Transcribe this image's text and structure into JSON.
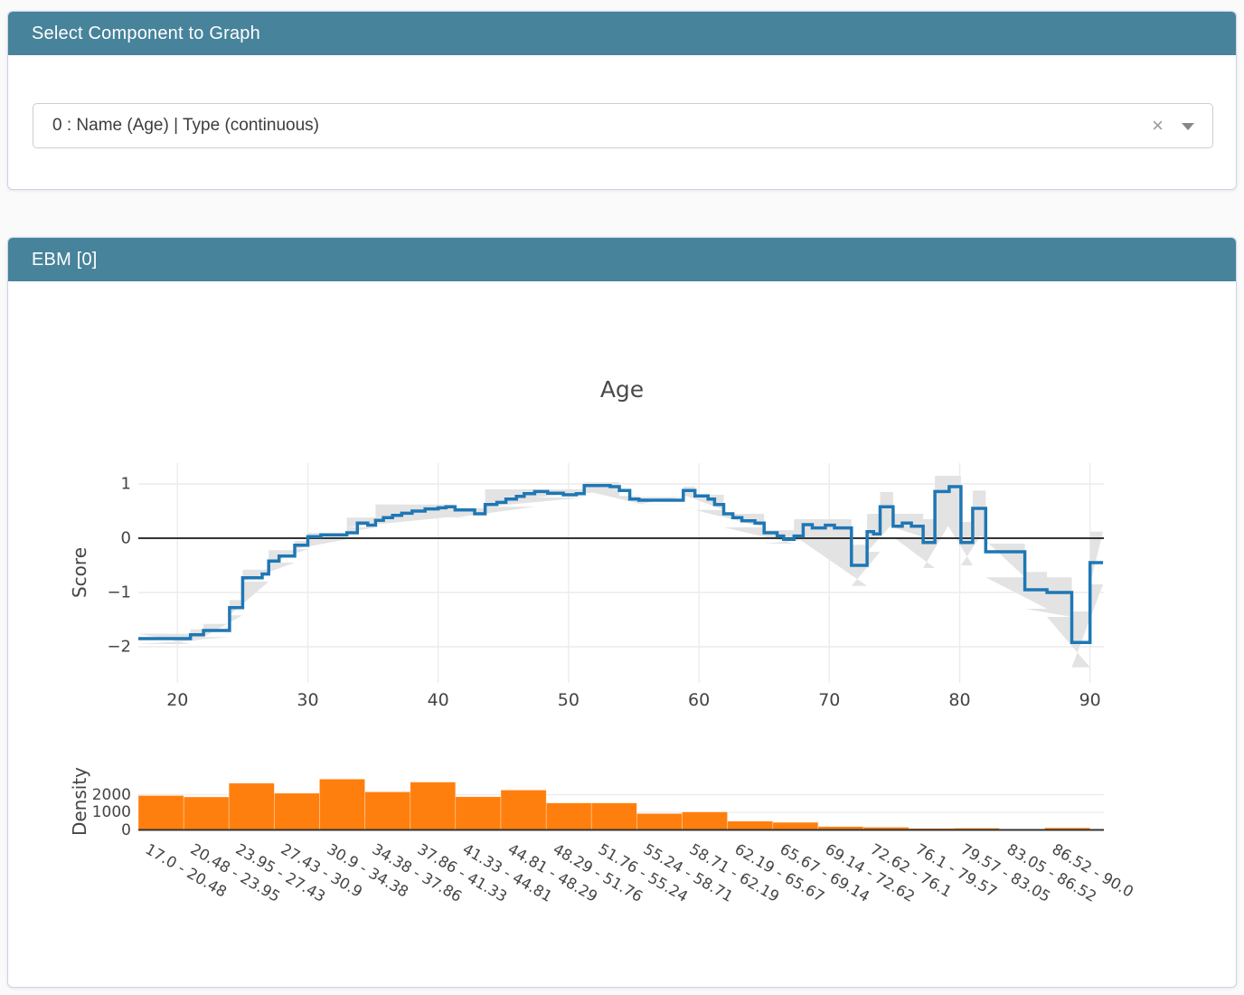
{
  "select_panel": {
    "title": "Select Component to Graph",
    "dropdown": {
      "value": "0 : Name (Age) | Type (continuous)",
      "clear_icon": "×"
    }
  },
  "ebm_panel": {
    "title": "EBM [0]"
  },
  "colors": {
    "header_teal": "#47839B",
    "line_blue": "#1f77b4",
    "band_gray": "#e3e3e3",
    "bar_orange": "#ff7f0e",
    "zero_line": "#333333",
    "grid": "#ececec",
    "tick_text": "#444444"
  },
  "chart_data": [
    {
      "type": "line",
      "title": "Age",
      "ylabel": "Score",
      "xlabel": "",
      "line_shape": "step-after",
      "grid": true,
      "zero_line": true,
      "x_range": [
        17,
        91
      ],
      "y_range": [
        -2.7,
        1.37
      ],
      "xticks": [
        20,
        30,
        40,
        50,
        60,
        70,
        80,
        90
      ],
      "yticks": [
        1,
        0,
        -1,
        -2
      ],
      "steps": [
        [
          17,
          -1.85
        ],
        [
          21,
          -1.78
        ],
        [
          22,
          -1.7
        ],
        [
          24,
          -1.28
        ],
        [
          25,
          -0.73
        ],
        [
          26.5,
          -0.66
        ],
        [
          27,
          -0.42
        ],
        [
          27.8,
          -0.33
        ],
        [
          29,
          -0.13
        ],
        [
          30,
          0.03
        ],
        [
          31,
          0.06
        ],
        [
          33,
          0.1
        ],
        [
          33.8,
          0.28
        ],
        [
          34.6,
          0.24
        ],
        [
          35.2,
          0.33
        ],
        [
          35.8,
          0.38
        ],
        [
          36.5,
          0.42
        ],
        [
          37.2,
          0.46
        ],
        [
          38,
          0.5
        ],
        [
          39,
          0.54
        ],
        [
          40,
          0.56
        ],
        [
          40.6,
          0.58
        ],
        [
          41.3,
          0.52
        ],
        [
          42.8,
          0.45
        ],
        [
          43.6,
          0.62
        ],
        [
          44.5,
          0.66
        ],
        [
          45.2,
          0.72
        ],
        [
          46,
          0.77
        ],
        [
          46.6,
          0.82
        ],
        [
          47.4,
          0.86
        ],
        [
          48.4,
          0.83
        ],
        [
          49.6,
          0.8
        ],
        [
          50.6,
          0.82
        ],
        [
          51.2,
          0.97
        ],
        [
          53.2,
          0.95
        ],
        [
          53.9,
          0.88
        ],
        [
          54.7,
          0.72
        ],
        [
          55.4,
          0.7
        ],
        [
          58.8,
          0.88
        ],
        [
          59.7,
          0.78
        ],
        [
          60.7,
          0.72
        ],
        [
          61.2,
          0.62
        ],
        [
          61.9,
          0.45
        ],
        [
          62.6,
          0.38
        ],
        [
          63.3,
          0.32
        ],
        [
          64.3,
          0.28
        ],
        [
          65,
          0.1
        ],
        [
          66,
          0.04
        ],
        [
          66.5,
          -0.02
        ],
        [
          67.3,
          0.04
        ],
        [
          68,
          0.25
        ],
        [
          68.7,
          0.19
        ],
        [
          69.7,
          0.24
        ],
        [
          70.4,
          0.19
        ],
        [
          71.7,
          -0.5
        ],
        [
          72.9,
          0.12
        ],
        [
          73.4,
          0.08
        ],
        [
          73.9,
          0.58
        ],
        [
          74.9,
          0.22
        ],
        [
          75.6,
          0.28
        ],
        [
          76.3,
          0.22
        ],
        [
          77.2,
          -0.08
        ],
        [
          78.1,
          0.86
        ],
        [
          79.2,
          0.95
        ],
        [
          80.1,
          -0.08
        ],
        [
          81,
          0.55
        ],
        [
          82,
          -0.25
        ],
        [
          85,
          -0.95
        ],
        [
          86.7,
          -1.0
        ],
        [
          88.6,
          -1.92
        ],
        [
          90,
          -0.45
        ]
      ],
      "x_end": 91,
      "ci": [
        [
          17,
          21,
          -1.95,
          -1.76
        ],
        [
          21,
          22,
          -1.88,
          -1.68
        ],
        [
          22,
          24,
          -1.82,
          -1.58
        ],
        [
          24,
          25,
          -1.42,
          -1.14
        ],
        [
          25,
          27,
          -0.8,
          -0.58
        ],
        [
          27,
          29,
          -0.45,
          -0.22
        ],
        [
          29,
          30,
          -0.2,
          -0.05
        ],
        [
          30,
          33,
          -0.02,
          0.1
        ],
        [
          33,
          35.2,
          0.2,
          0.38
        ],
        [
          35.2,
          41.3,
          0.4,
          0.62
        ],
        [
          41.3,
          43.6,
          0.38,
          0.55
        ],
        [
          43.6,
          47.4,
          0.58,
          0.9
        ],
        [
          47.4,
          51.2,
          0.75,
          0.9
        ],
        [
          51.2,
          53.9,
          0.88,
          1.03
        ],
        [
          53.9,
          55.4,
          0.64,
          0.78
        ],
        [
          55.4,
          58.8,
          0.63,
          0.76
        ],
        [
          58.8,
          59.7,
          0.8,
          0.95
        ],
        [
          59.7,
          61.9,
          0.52,
          0.8
        ],
        [
          61.9,
          65,
          0.2,
          0.45
        ],
        [
          65,
          67.3,
          -0.1,
          0.15
        ],
        [
          67.3,
          71.7,
          0.05,
          0.35
        ],
        [
          71.7,
          72.9,
          -0.88,
          -0.12
        ],
        [
          72.9,
          73.9,
          -0.25,
          0.45
        ],
        [
          73.9,
          74.9,
          0.28,
          0.85
        ],
        [
          74.9,
          77.2,
          0.02,
          0.45
        ],
        [
          77.2,
          78.1,
          -0.55,
          0.35
        ],
        [
          78.1,
          80.1,
          0.62,
          1.15
        ],
        [
          80.1,
          81,
          -0.5,
          0.3
        ],
        [
          81,
          82,
          0.18,
          0.88
        ],
        [
          82,
          85,
          -0.72,
          -0.1
        ],
        [
          85,
          86.7,
          -1.3,
          -0.62
        ],
        [
          86.7,
          88.6,
          -1.45,
          -0.72
        ],
        [
          88.6,
          90,
          -2.38,
          -1.35
        ],
        [
          90,
          91,
          -0.85,
          0.12
        ]
      ]
    },
    {
      "type": "bar",
      "ylabel": "Density",
      "yticks": [
        0,
        1000,
        2000
      ],
      "y_range": [
        0,
        3450
      ],
      "bin_edges": [
        17.0,
        20.48,
        23.95,
        27.43,
        30.9,
        34.38,
        37.86,
        41.33,
        44.81,
        48.29,
        51.76,
        55.24,
        58.71,
        62.19,
        65.67,
        69.14,
        72.62,
        76.1,
        79.57,
        83.05,
        86.52,
        90.0
      ],
      "categories": [
        "17.0 - 20.48",
        "20.48 - 23.95",
        "23.95 - 27.43",
        "27.43 - 30.9",
        "30.9 - 34.38",
        "34.38 - 37.86",
        "37.86 - 41.33",
        "41.33 - 44.81",
        "44.81 - 48.29",
        "48.29 - 51.76",
        "51.76 - 55.24",
        "55.24 - 58.71",
        "58.71 - 62.19",
        "62.19 - 65.67",
        "65.67 - 69.14",
        "69.14 - 72.62",
        "72.62 - 76.1",
        "76.1 - 79.57",
        "79.57 - 83.05",
        "83.05 - 86.52",
        "86.52 - 90.0"
      ],
      "values": [
        1950,
        1870,
        2650,
        2080,
        2880,
        2160,
        2715,
        1880,
        2260,
        1530,
        1530,
        930,
        1020,
        500,
        430,
        190,
        155,
        85,
        105,
        35,
        120
      ]
    }
  ]
}
